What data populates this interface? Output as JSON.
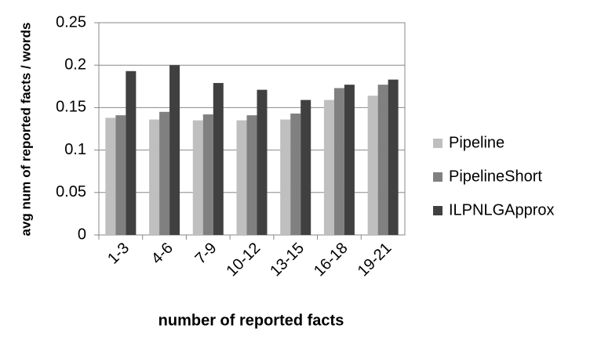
{
  "chart_data": {
    "type": "bar",
    "xlabel": "number of reported facts",
    "ylabel": "avg num of reported facts / words",
    "categories": [
      "1-3",
      "4-6",
      "7-9",
      "10-12",
      "13-15",
      "16-18",
      "19-21"
    ],
    "series": [
      {
        "name": "Pipeline",
        "color": "#bfbfbf",
        "values": [
          0.138,
          0.136,
          0.135,
          0.135,
          0.136,
          0.159,
          0.164
        ]
      },
      {
        "name": "PipelineShort",
        "color": "#808080",
        "values": [
          0.141,
          0.145,
          0.142,
          0.141,
          0.143,
          0.173,
          0.177
        ]
      },
      {
        "name": "ILPNLGApprox",
        "color": "#404040",
        "values": [
          0.193,
          0.2,
          0.179,
          0.171,
          0.159,
          0.177,
          0.183
        ]
      }
    ],
    "ylim": [
      0,
      0.25
    ],
    "yticks": [
      0,
      0.05,
      0.1,
      0.15,
      0.2,
      0.25
    ],
    "grid": true,
    "legend": "right"
  }
}
